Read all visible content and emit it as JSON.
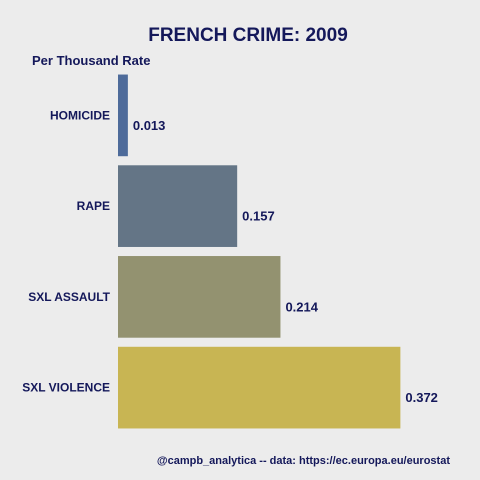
{
  "chart_data": {
    "type": "bar",
    "orientation": "horizontal",
    "title": "FRENCH CRIME: 2009",
    "subtitle": "Per Thousand Rate",
    "categories": [
      "HOMICIDE",
      "RAPE",
      "SXL ASSAULT",
      "SXL VIOLENCE"
    ],
    "values": [
      0.013,
      0.157,
      0.214,
      0.372
    ],
    "value_labels": [
      "0.013",
      "0.157",
      "0.214",
      "0.372"
    ],
    "colors": [
      "#4e6b9a",
      "#647586",
      "#939270",
      "#c8b553"
    ],
    "xlim": [
      0,
      0.44
    ],
    "grid": false,
    "caption": "@campb_analytica --  data: https://ec.europa.eu/eurostat"
  },
  "colors": {
    "background": "#ececec",
    "text": "#14185a"
  }
}
